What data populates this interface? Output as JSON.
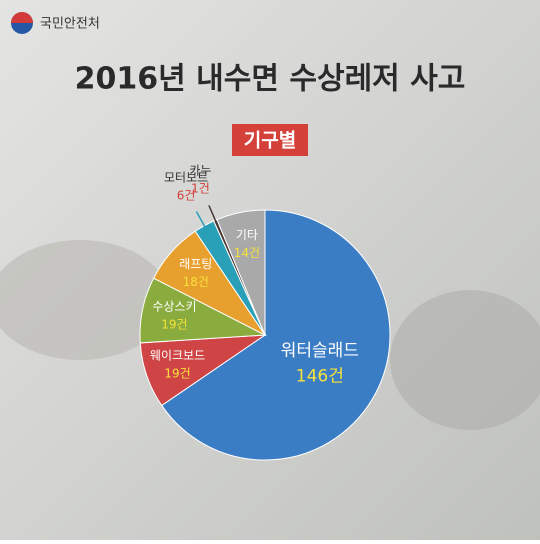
{
  "header": {
    "logo": "국민안전처"
  },
  "chart_data": {
    "type": "pie",
    "title": "2016년 내수면 수상레저 사고",
    "subtitle": "기구별",
    "categories": [
      "워터슬래드",
      "웨이크보드",
      "수상스키",
      "래프팅",
      "모터보트",
      "카누",
      "기타"
    ],
    "values": [
      146,
      19,
      19,
      18,
      6,
      1,
      14
    ],
    "value_labels": [
      "146건",
      "19건",
      "19건",
      "18건",
      "6건",
      "1건",
      "14건"
    ],
    "colors": [
      "#3b7dc4",
      "#cf4444",
      "#8aab3d",
      "#e79f2e",
      "#2a9fb8",
      "#4a3a35",
      "#a9a9a9"
    ]
  }
}
